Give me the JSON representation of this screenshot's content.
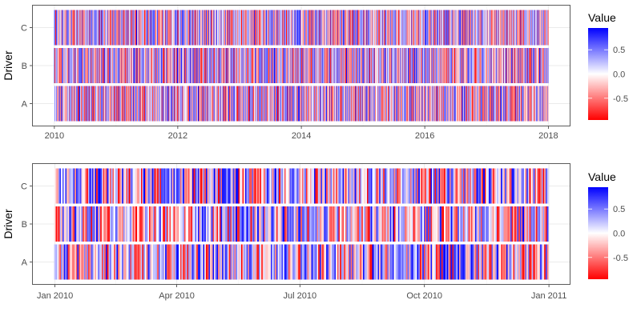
{
  "chart_data": [
    {
      "type": "heatmap",
      "ylabel": "Driver",
      "categories": [
        "A",
        "B",
        "C"
      ],
      "x_range": [
        "2010-01-01",
        "2017-12-31"
      ],
      "x_ticks": [
        {
          "label": "2010",
          "date": "2010-01-01"
        },
        {
          "label": "2012",
          "date": "2012-01-01"
        },
        {
          "label": "2014",
          "date": "2014-01-01"
        },
        {
          "label": "2016",
          "date": "2016-01-01"
        },
        {
          "label": "2018",
          "date": "2018-01-01"
        }
      ],
      "series_resolution": "daily",
      "value_range": [
        -0.95,
        0.95
      ],
      "seed": 11,
      "legend": {
        "title": "Value",
        "position": "right",
        "ticks": [
          {
            "label": "0.5",
            "value": 0.5
          },
          {
            "label": "0.0",
            "value": 0
          },
          {
            "label": "-0.5",
            "value": -0.5
          }
        ],
        "colors": {
          "low": "#ff0000",
          "mid": "#ffffff",
          "high": "#0000ff"
        }
      },
      "grid": true
    },
    {
      "type": "heatmap",
      "ylabel": "Driver",
      "categories": [
        "A",
        "B",
        "C"
      ],
      "x_range": [
        "2010-01-01",
        "2010-12-31"
      ],
      "x_ticks": [
        {
          "label": "Jan 2010",
          "date": "2010-01-01"
        },
        {
          "label": "Apr 2010",
          "date": "2010-04-01"
        },
        {
          "label": "Jul 2010",
          "date": "2010-07-01"
        },
        {
          "label": "Oct 2010",
          "date": "2010-10-01"
        },
        {
          "label": "Jan 2011",
          "date": "2011-01-01"
        }
      ],
      "series_resolution": "daily",
      "value_range": [
        -0.95,
        0.95
      ],
      "seed": 11,
      "legend": {
        "title": "Value",
        "position": "right",
        "ticks": [
          {
            "label": "0.5",
            "value": 0.5
          },
          {
            "label": "0.0",
            "value": 0
          },
          {
            "label": "-0.5",
            "value": -0.5
          }
        ],
        "colors": {
          "low": "#ff0000",
          "mid": "#ffffff",
          "high": "#0000ff"
        }
      },
      "grid": true
    }
  ]
}
